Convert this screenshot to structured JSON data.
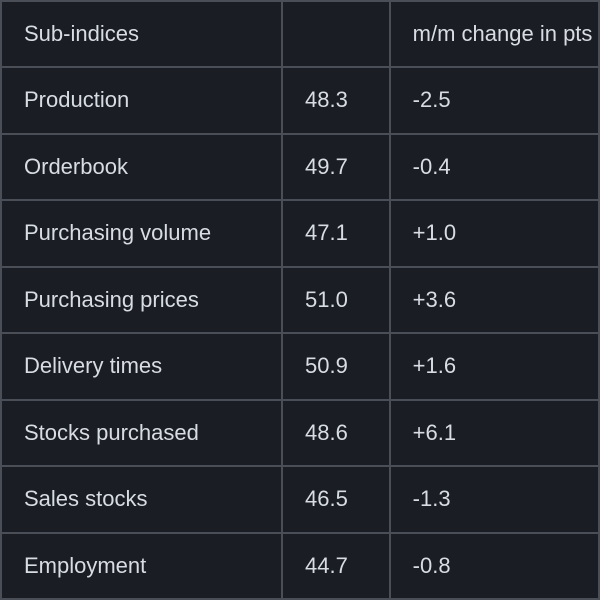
{
  "table": {
    "type": "table",
    "background_color": "#1a1d24",
    "border_color": "#4a4e56",
    "text_color": "#d8dce3",
    "font_size": 22,
    "columns": [
      {
        "key": "name",
        "label": "Sub-indices",
        "width": "47%"
      },
      {
        "key": "value",
        "label": "",
        "width": "18%"
      },
      {
        "key": "change",
        "label": "m/m change in pts",
        "width": "35%"
      }
    ],
    "rows": [
      {
        "name": "Production",
        "value": "48.3",
        "change": "-2.5"
      },
      {
        "name": "Orderbook",
        "value": "49.7",
        "change": "-0.4"
      },
      {
        "name": "Purchasing volume",
        "value": "47.1",
        "change": "+1.0"
      },
      {
        "name": "Purchasing prices",
        "value": "51.0",
        "change": "+3.6"
      },
      {
        "name": "Delivery times",
        "value": "50.9",
        "change": "+1.6"
      },
      {
        "name": "Stocks purchased",
        "value": "48.6",
        "change": "+6.1"
      },
      {
        "name": "Sales stocks",
        "value": "46.5",
        "change": "-1.3"
      },
      {
        "name": "Employment",
        "value": "44.7",
        "change": "-0.8"
      }
    ]
  }
}
